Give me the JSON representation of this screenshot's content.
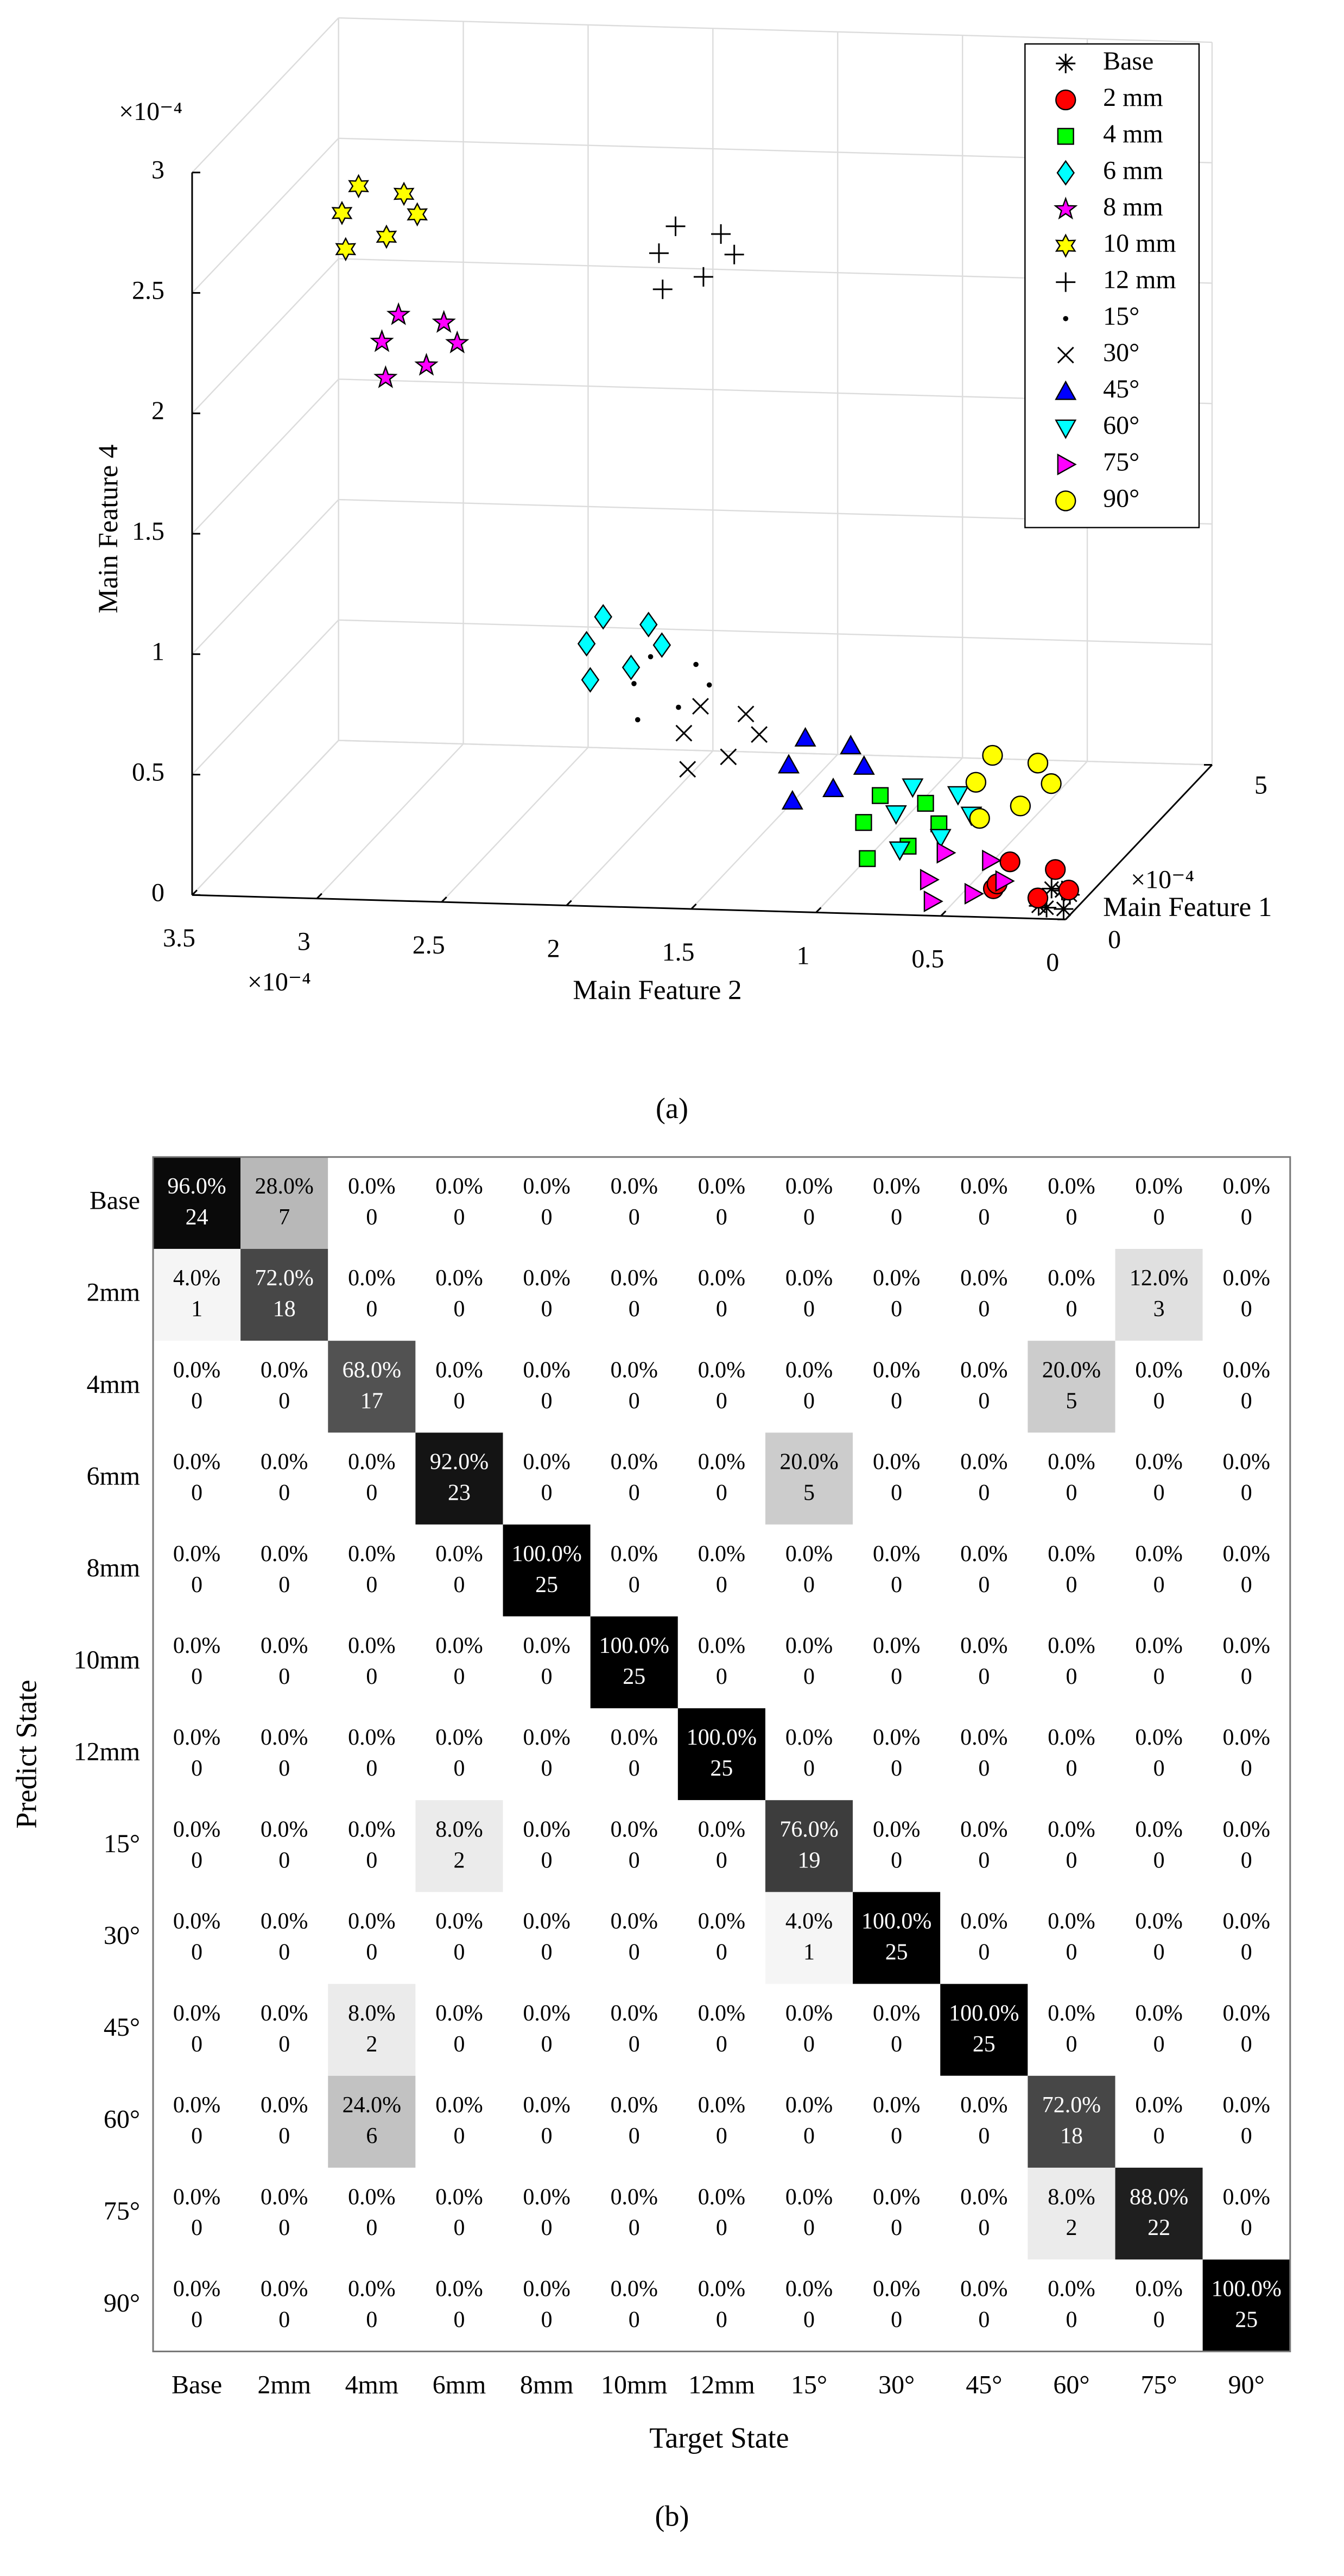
{
  "chart_data": [
    {
      "type": "scatter3d",
      "caption": "(a)",
      "xlabel": "Main Feature 1",
      "ylabel": "Main Feature 2",
      "zlabel": "Main Feature 4",
      "x_exponent": "×10⁻⁴",
      "y_exponent": "×10⁻⁴",
      "z_exponent": "×10⁻⁴",
      "xlim": [
        0,
        5
      ],
      "ylim": [
        0,
        3.5
      ],
      "zlim": [
        0,
        3
      ],
      "xticks": [
        0,
        5
      ],
      "yticks": [
        0,
        0.5,
        1,
        1.5,
        2,
        2.5,
        3,
        3.5
      ],
      "zticks": [
        0,
        0.5,
        1,
        1.5,
        2,
        2.5,
        3
      ],
      "grid": true,
      "legend": "northeast",
      "series": [
        {
          "name": "Base",
          "marker": "asterisk",
          "color": "#000000",
          "x": [
            0.1,
            0.3,
            0.2,
            0.4,
            0.2,
            0.1
          ],
          "y": [
            0.02,
            0.05,
            0.1,
            0.03,
            0.08,
            0.12
          ],
          "z": [
            0.03,
            0.08,
            0.02,
            0.05,
            0.1,
            0.04
          ]
        },
        {
          "name": "2 mm",
          "marker": "circle",
          "color": "#ff0000",
          "x": [
            0.5,
            0.4,
            0.6,
            0.5,
            0.3,
            0.7
          ],
          "y": [
            0.1,
            0.27,
            0.36,
            0.17,
            0.31,
            0.07
          ],
          "z": [
            0.14,
            0.18,
            0.04,
            0.02,
            0.1,
            0.03
          ]
        },
        {
          "name": "4 mm",
          "marker": "square",
          "color": "#00ff00",
          "x": [
            0.5,
            0.4,
            0.6,
            0.5,
            0.3,
            0.7
          ],
          "y": [
            0.62,
            0.79,
            0.88,
            0.69,
            0.83,
            0.59
          ],
          "z": [
            0.4,
            0.44,
            0.3,
            0.22,
            0.19,
            0.29
          ]
        },
        {
          "name": "6 mm",
          "marker": "diamond",
          "color": "#00ffff",
          "x": [
            0.5,
            0.4,
            0.6,
            0.5,
            0.3,
            0.7
          ],
          "y": [
            1.73,
            1.9,
            1.99,
            1.8,
            1.94,
            1.7
          ],
          "z": [
            1.11,
            1.15,
            1.01,
            0.93,
            0.9,
            1.0
          ]
        },
        {
          "name": "8 mm",
          "marker": "star",
          "color": "#ff00ff",
          "x": [
            0.5,
            0.4,
            0.6,
            0.5,
            0.3,
            0.7
          ],
          "y": [
            2.55,
            2.72,
            2.81,
            2.62,
            2.76,
            2.52
          ],
          "z": [
            2.34,
            2.38,
            2.24,
            2.16,
            2.13,
            2.23
          ]
        },
        {
          "name": "10 mm",
          "marker": "hexagram",
          "color": "#ffff00",
          "x": [
            0.5,
            0.4,
            0.6,
            0.5,
            0.3,
            0.7
          ],
          "y": [
            2.71,
            2.88,
            2.97,
            2.78,
            2.92,
            2.68
          ],
          "z": [
            2.87,
            2.91,
            2.77,
            2.69,
            2.66,
            2.76
          ]
        },
        {
          "name": "12 mm",
          "marker": "plus",
          "color": "#000000",
          "x": [
            0.5,
            0.4,
            0.6,
            0.5,
            0.3,
            0.7
          ],
          "y": [
            1.44,
            1.61,
            1.7,
            1.51,
            1.65,
            1.41
          ],
          "z": [
            2.74,
            2.78,
            2.64,
            2.56,
            2.53,
            2.63
          ]
        },
        {
          "name": "15°",
          "marker": "point",
          "color": "#000000",
          "x": [
            0.5,
            0.4,
            0.6,
            0.5,
            0.3,
            0.7
          ],
          "y": [
            1.54,
            1.71,
            1.8,
            1.61,
            1.75,
            1.51
          ],
          "z": [
            0.95,
            0.99,
            0.85,
            0.77,
            0.74,
            0.84
          ]
        },
        {
          "name": "30°",
          "marker": "x",
          "color": "#000000",
          "x": [
            0.5,
            0.4,
            0.6,
            0.5,
            0.3,
            0.7
          ],
          "y": [
            1.34,
            1.51,
            1.6,
            1.41,
            1.55,
            1.31
          ],
          "z": [
            0.75,
            0.79,
            0.65,
            0.57,
            0.54,
            0.64
          ]
        },
        {
          "name": "45°",
          "marker": "triangle-up",
          "color": "#0000ff",
          "x": [
            0.5,
            0.4,
            0.6,
            0.5,
            0.3,
            0.7
          ],
          "y": [
            0.92,
            1.09,
            1.18,
            0.99,
            1.13,
            0.89
          ],
          "z": [
            0.63,
            0.67,
            0.53,
            0.45,
            0.42,
            0.52
          ]
        },
        {
          "name": "60°",
          "marker": "triangle-down",
          "color": "#00ffff",
          "x": [
            0.5,
            0.4,
            0.6,
            0.5,
            0.3,
            0.7
          ],
          "y": [
            0.49,
            0.66,
            0.75,
            0.56,
            0.7,
            0.46
          ],
          "z": [
            0.44,
            0.48,
            0.34,
            0.26,
            0.23,
            0.33
          ]
        },
        {
          "name": "75°",
          "marker": "triangle-right",
          "color": "#ff00ff",
          "x": [
            0.5,
            0.4,
            0.6,
            0.5,
            0.3,
            0.7
          ],
          "y": [
            0.36,
            0.53,
            0.62,
            0.43,
            0.57,
            0.33
          ],
          "z": [
            0.17,
            0.21,
            0.07,
            0.03,
            0.02,
            0.06
          ]
        },
        {
          "name": "90°",
          "marker": "circle",
          "color": "#ffff00",
          "x": [
            0.5,
            0.4,
            0.6,
            0.5,
            0.3,
            0.7
          ],
          "y": [
            0.17,
            0.34,
            0.43,
            0.24,
            0.38,
            0.14
          ],
          "z": [
            0.58,
            0.62,
            0.48,
            0.4,
            0.37,
            0.47
          ]
        }
      ]
    },
    {
      "type": "confusion",
      "caption": "(b)",
      "xlabel": "Target State",
      "ylabel": "Predict State",
      "categories": [
        "Base",
        "2mm",
        "4mm",
        "6mm",
        "8mm",
        "10mm",
        "12mm",
        "15°",
        "30°",
        "45°",
        "60°",
        "75°",
        "90°"
      ],
      "values": [
        [
          96,
          28,
          0,
          0,
          0,
          0,
          0,
          0,
          0,
          0,
          0,
          0,
          0
        ],
        [
          4,
          72,
          0,
          0,
          0,
          0,
          0,
          0,
          0,
          0,
          0,
          12,
          0
        ],
        [
          0,
          0,
          68,
          0,
          0,
          0,
          0,
          0,
          0,
          0,
          20,
          0,
          0
        ],
        [
          0,
          0,
          0,
          92,
          0,
          0,
          0,
          20,
          0,
          0,
          0,
          0,
          0
        ],
        [
          0,
          0,
          0,
          0,
          100,
          0,
          0,
          0,
          0,
          0,
          0,
          0,
          0
        ],
        [
          0,
          0,
          0,
          0,
          0,
          100,
          0,
          0,
          0,
          0,
          0,
          0,
          0
        ],
        [
          0,
          0,
          0,
          0,
          0,
          0,
          100,
          0,
          0,
          0,
          0,
          0,
          0
        ],
        [
          0,
          0,
          0,
          8,
          0,
          0,
          0,
          76,
          0,
          0,
          0,
          0,
          0
        ],
        [
          0,
          0,
          0,
          0,
          0,
          0,
          0,
          4,
          100,
          0,
          0,
          0,
          0
        ],
        [
          0,
          0,
          8,
          0,
          0,
          0,
          0,
          0,
          0,
          100,
          0,
          0,
          0
        ],
        [
          0,
          0,
          24,
          0,
          0,
          0,
          0,
          0,
          0,
          0,
          72,
          0,
          0
        ],
        [
          0,
          0,
          0,
          0,
          0,
          0,
          0,
          0,
          0,
          0,
          8,
          88,
          0
        ],
        [
          0,
          0,
          0,
          0,
          0,
          0,
          0,
          0,
          0,
          0,
          0,
          0,
          100
        ]
      ],
      "value_labels": [
        [
          "96.0%",
          "28.0%",
          "0.0%",
          "0.0%",
          "0.0%",
          "0.0%",
          "0.0%",
          "0.0%",
          "0.0%",
          "0.0%",
          "0.0%",
          "0.0%",
          "0.0%"
        ],
        [
          "4.0%",
          "72.0%",
          "0.0%",
          "0.0%",
          "0.0%",
          "0.0%",
          "0.0%",
          "0.0%",
          "0.0%",
          "0.0%",
          "0.0%",
          "12.0%",
          "0.0%"
        ],
        [
          "0.0%",
          "0.0%",
          "68.0%",
          "0.0%",
          "0.0%",
          "0.0%",
          "0.0%",
          "0.0%",
          "0.0%",
          "0.0%",
          "20.0%",
          "0.0%",
          "0.0%"
        ],
        [
          "0.0%",
          "0.0%",
          "0.0%",
          "92.0%",
          "0.0%",
          "0.0%",
          "0.0%",
          "20.0%",
          "0.0%",
          "0.0%",
          "0.0%",
          "0.0%",
          "0.0%"
        ],
        [
          "0.0%",
          "0.0%",
          "0.0%",
          "0.0%",
          "100.0%",
          "0.0%",
          "0.0%",
          "0.0%",
          "0.0%",
          "0.0%",
          "0.0%",
          "0.0%",
          "0.0%"
        ],
        [
          "0.0%",
          "0.0%",
          "0.0%",
          "0.0%",
          "0.0%",
          "100.0%",
          "0.0%",
          "0.0%",
          "0.0%",
          "0.0%",
          "0.0%",
          "0.0%",
          "0.0%"
        ],
        [
          "0.0%",
          "0.0%",
          "0.0%",
          "0.0%",
          "0.0%",
          "0.0%",
          "100.0%",
          "0.0%",
          "0.0%",
          "0.0%",
          "0.0%",
          "0.0%",
          "0.0%"
        ],
        [
          "0.0%",
          "0.0%",
          "0.0%",
          "8.0%",
          "0.0%",
          "0.0%",
          "0.0%",
          "76.0%",
          "0.0%",
          "0.0%",
          "0.0%",
          "0.0%",
          "0.0%"
        ],
        [
          "0.0%",
          "0.0%",
          "0.0%",
          "0.0%",
          "0.0%",
          "0.0%",
          "0.0%",
          "4.0%",
          "100.0%",
          "0.0%",
          "0.0%",
          "0.0%",
          "0.0%"
        ],
        [
          "0.0%",
          "0.0%",
          "8.0%",
          "0.0%",
          "0.0%",
          "0.0%",
          "0.0%",
          "0.0%",
          "0.0%",
          "100.0%",
          "0.0%",
          "0.0%",
          "0.0%"
        ],
        [
          "0.0%",
          "0.0%",
          "24.0%",
          "0.0%",
          "0.0%",
          "0.0%",
          "0.0%",
          "0.0%",
          "0.0%",
          "0.0%",
          "72.0%",
          "0.0%",
          "0.0%"
        ],
        [
          "0.0%",
          "0.0%",
          "0.0%",
          "0.0%",
          "0.0%",
          "0.0%",
          "0.0%",
          "0.0%",
          "0.0%",
          "0.0%",
          "8.0%",
          "88.0%",
          "0.0%"
        ],
        [
          "0.0%",
          "0.0%",
          "0.0%",
          "0.0%",
          "0.0%",
          "0.0%",
          "0.0%",
          "0.0%",
          "0.0%",
          "0.0%",
          "0.0%",
          "0.0%",
          "100.0%"
        ]
      ],
      "counts": [
        [
          24,
          7,
          0,
          0,
          0,
          0,
          0,
          0,
          0,
          0,
          0,
          0,
          0
        ],
        [
          1,
          18,
          0,
          0,
          0,
          0,
          0,
          0,
          0,
          0,
          0,
          3,
          0
        ],
        [
          0,
          0,
          17,
          0,
          0,
          0,
          0,
          0,
          0,
          0,
          5,
          0,
          0
        ],
        [
          0,
          0,
          0,
          23,
          0,
          0,
          0,
          5,
          0,
          0,
          0,
          0,
          0
        ],
        [
          0,
          0,
          0,
          0,
          25,
          0,
          0,
          0,
          0,
          0,
          0,
          0,
          0
        ],
        [
          0,
          0,
          0,
          0,
          0,
          25,
          0,
          0,
          0,
          0,
          0,
          0,
          0
        ],
        [
          0,
          0,
          0,
          0,
          0,
          0,
          25,
          0,
          0,
          0,
          0,
          0,
          0
        ],
        [
          0,
          0,
          0,
          2,
          0,
          0,
          0,
          19,
          0,
          0,
          0,
          0,
          0
        ],
        [
          0,
          0,
          0,
          0,
          0,
          0,
          0,
          1,
          25,
          0,
          0,
          0,
          0
        ],
        [
          0,
          0,
          2,
          0,
          0,
          0,
          0,
          0,
          0,
          25,
          0,
          0,
          0
        ],
        [
          0,
          0,
          6,
          0,
          0,
          0,
          0,
          0,
          0,
          0,
          18,
          0,
          0
        ],
        [
          0,
          0,
          0,
          0,
          0,
          0,
          0,
          0,
          0,
          0,
          2,
          22,
          0
        ],
        [
          0,
          0,
          0,
          0,
          0,
          0,
          0,
          0,
          0,
          0,
          0,
          0,
          25
        ]
      ]
    }
  ]
}
